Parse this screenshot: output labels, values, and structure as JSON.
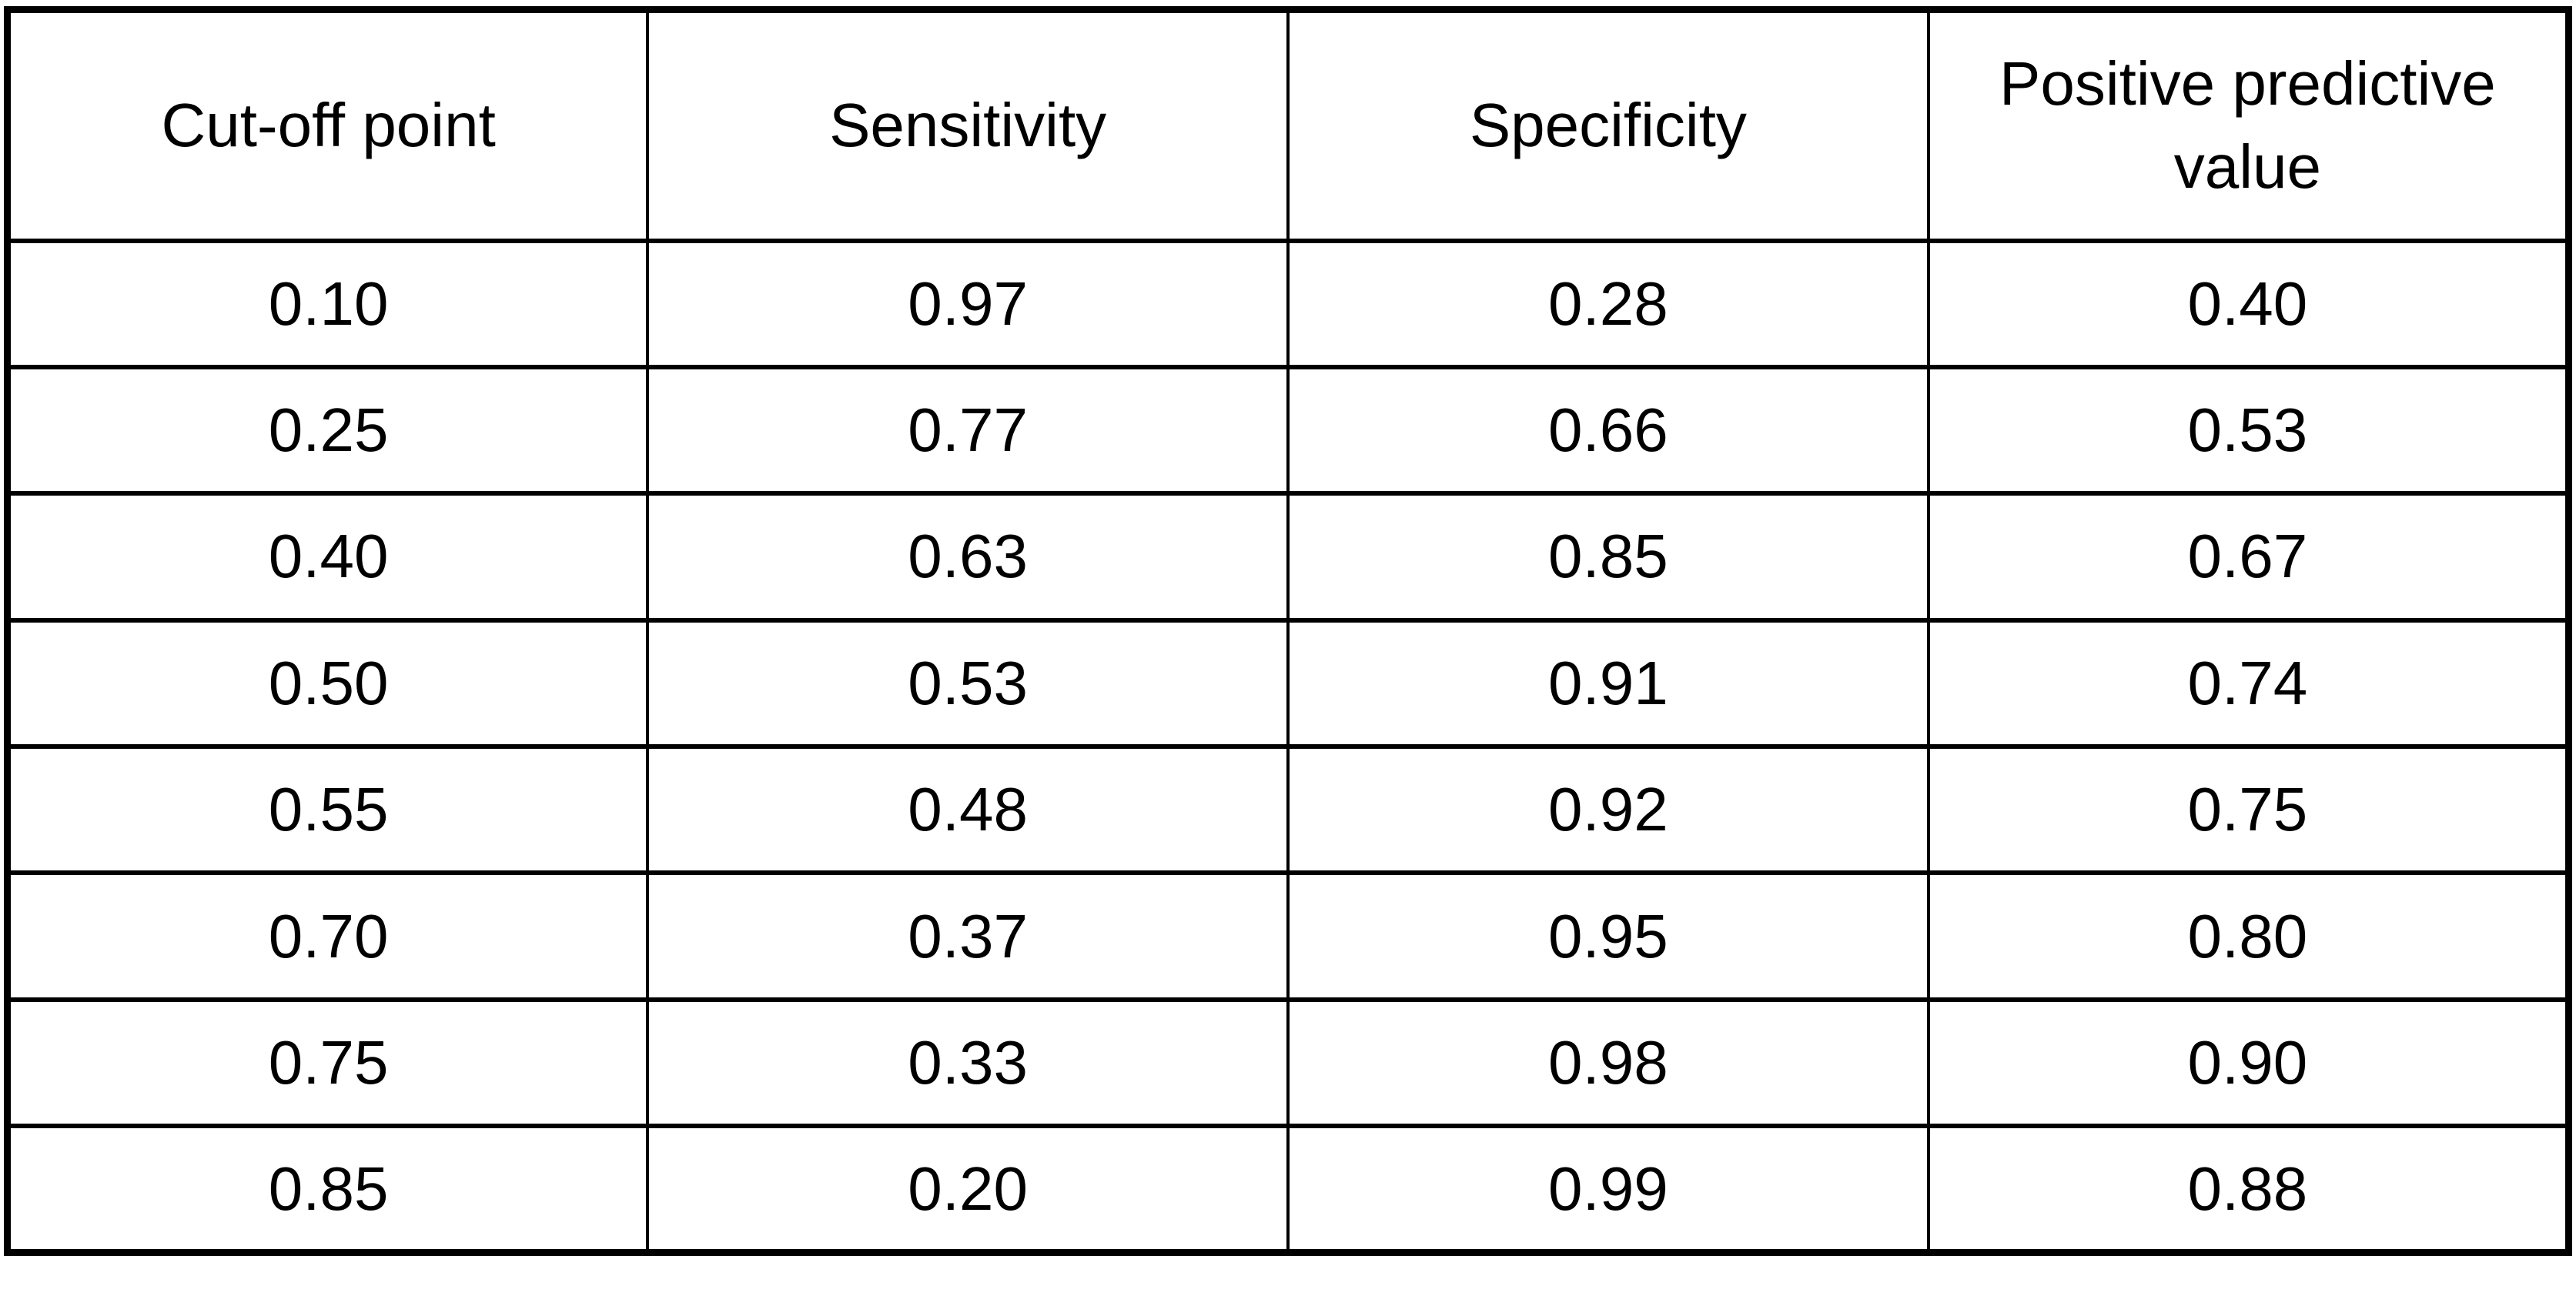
{
  "table": {
    "columns": [
      "Cut-off point",
      "Sensitivity",
      "Specificity",
      "Positive predictive value"
    ],
    "rows": [
      [
        "0.10",
        "0.97",
        "0.28",
        "0.40"
      ],
      [
        "0.25",
        "0.77",
        "0.66",
        "0.53"
      ],
      [
        "0.40",
        "0.63",
        "0.85",
        "0.67"
      ],
      [
        "0.50",
        "0.53",
        "0.91",
        "0.74"
      ],
      [
        "0.55",
        "0.48",
        "0.92",
        "0.75"
      ],
      [
        "0.70",
        "0.37",
        "0.95",
        "0.80"
      ],
      [
        "0.75",
        "0.33",
        "0.98",
        "0.90"
      ],
      [
        "0.85",
        "0.20",
        "0.99",
        "0.88"
      ]
    ],
    "colors": {
      "border": "#000000",
      "background": "#ffffff",
      "text": "#000000"
    }
  },
  "chart_data": {
    "type": "table",
    "title": "",
    "columns": [
      "Cut-off point",
      "Sensitivity",
      "Specificity",
      "Positive predictive value"
    ],
    "x": [
      0.1,
      0.25,
      0.4,
      0.5,
      0.55,
      0.7,
      0.75,
      0.85
    ],
    "series": [
      {
        "name": "Sensitivity",
        "values": [
          0.97,
          0.77,
          0.63,
          0.53,
          0.48,
          0.37,
          0.33,
          0.2
        ]
      },
      {
        "name": "Specificity",
        "values": [
          0.28,
          0.66,
          0.85,
          0.91,
          0.92,
          0.95,
          0.98,
          0.99
        ]
      },
      {
        "name": "Positive predictive value",
        "values": [
          0.4,
          0.53,
          0.67,
          0.74,
          0.75,
          0.8,
          0.9,
          0.88
        ]
      }
    ]
  }
}
